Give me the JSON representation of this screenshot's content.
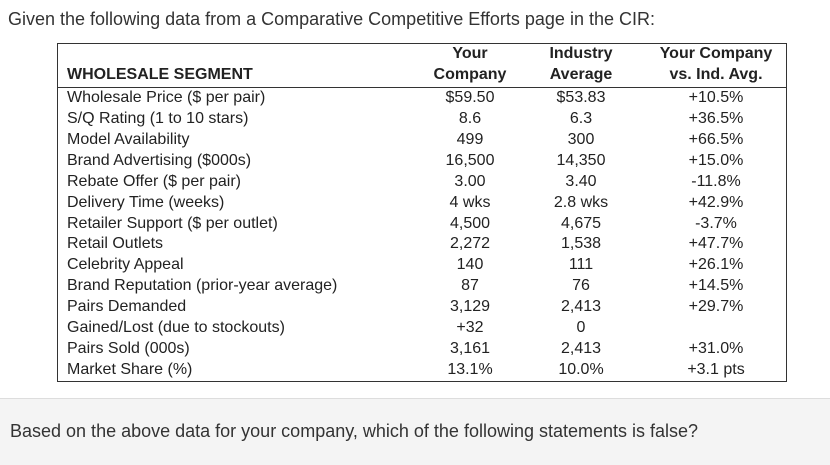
{
  "intro": "Given the following data from a Comparative Competitive Efforts page in the CIR:",
  "table": {
    "corner": "WHOLESALE SEGMENT",
    "columns": [
      [
        "Your",
        "Company"
      ],
      [
        "Industry",
        "Average"
      ],
      [
        "Your Company",
        "vs. Ind. Avg."
      ]
    ],
    "rows": [
      [
        "Wholesale Price ($ per pair)",
        "$59.50",
        "$53.83",
        "+10.5%"
      ],
      [
        "S/Q Rating (1 to 10 stars)",
        "8.6",
        "6.3",
        "+36.5%"
      ],
      [
        "Model Availability",
        "499",
        "300",
        "+66.5%"
      ],
      [
        "Brand Advertising ($000s)",
        "16,500",
        "14,350",
        "+15.0%"
      ],
      [
        "Rebate Offer ($ per pair)",
        "3.00",
        "3.40",
        "-11.8%"
      ],
      [
        "Delivery Time (weeks)",
        "4 wks",
        "2.8 wks",
        "+42.9%"
      ],
      [
        "Retailer Support ($ per outlet)",
        "4,500",
        "4,675",
        "-3.7%"
      ],
      [
        "Retail Outlets",
        "2,272",
        "1,538",
        "+47.7%"
      ],
      [
        "Celebrity Appeal",
        "140",
        "111",
        "+26.1%"
      ],
      [
        "Brand Reputation (prior-year average)",
        "87",
        "76",
        "+14.5%"
      ],
      [
        "Pairs Demanded",
        "3,129",
        "2,413",
        "+29.7%"
      ],
      [
        "Gained/Lost (due to stockouts)",
        "+32",
        "0",
        null
      ],
      [
        "Pairs Sold (000s)",
        "3,161",
        "2,413",
        "+31.0%"
      ],
      [
        "Market Share (%)",
        "13.1%",
        "10.0%",
        "+3.1 pts"
      ]
    ]
  },
  "question": "Based on the above data for your company, which of the following statements is false?"
}
